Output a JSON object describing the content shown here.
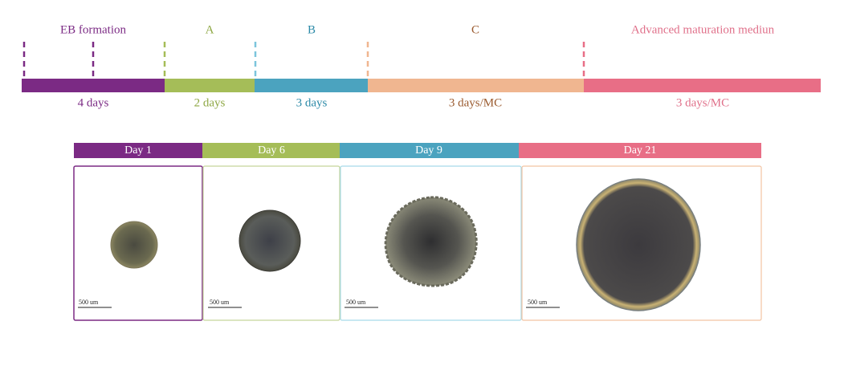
{
  "timeline": {
    "stages": [
      {
        "label": "EB formation",
        "duration": "4 days"
      },
      {
        "label": "A",
        "duration": "2 days"
      },
      {
        "label": "B",
        "duration": "3 days"
      },
      {
        "label": "C",
        "duration": "3 days/MC"
      },
      {
        "label": "Advanced maturation mediun",
        "duration": "3 days/MC"
      }
    ]
  },
  "panels": [
    {
      "day": "Day 1",
      "scale_bar": "500 um"
    },
    {
      "day": "Day 6",
      "scale_bar": "500 um"
    },
    {
      "day": "Day 9",
      "scale_bar": "500 um"
    },
    {
      "day": "Day 21",
      "scale_bar": "500 um"
    }
  ]
}
